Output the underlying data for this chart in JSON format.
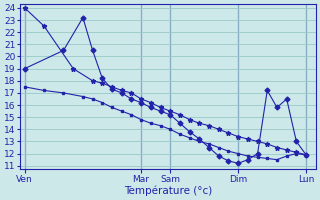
{
  "xlabel": "Température (°c)",
  "bg_color": "#cce8e8",
  "grid_color": "#99c8c8",
  "line_color": "#2222aa",
  "ylim_min": 10.7,
  "ylim_max": 24.3,
  "yticks": [
    11,
    12,
    13,
    14,
    15,
    16,
    17,
    18,
    19,
    20,
    21,
    22,
    23,
    24
  ],
  "day_labels": [
    "Ven",
    "Mar",
    "Sam",
    "Dim",
    "Lun"
  ],
  "day_positions": [
    0,
    12,
    15,
    22,
    29
  ],
  "xlim_min": -0.5,
  "xlim_max": 30.0,
  "s1_x": [
    0,
    2,
    5,
    7,
    8,
    9,
    10,
    11,
    12,
    13,
    14,
    15,
    16,
    17,
    18,
    19,
    20,
    21,
    22,
    23,
    24,
    25,
    26,
    27,
    28,
    29
  ],
  "s1_y": [
    24,
    22.5,
    19.0,
    18.0,
    17.8,
    17.5,
    17.2,
    17.0,
    16.5,
    16.2,
    15.8,
    15.5,
    15.2,
    14.8,
    14.5,
    14.3,
    14.0,
    13.7,
    13.4,
    13.2,
    13.0,
    12.8,
    12.5,
    12.3,
    12.1,
    11.9
  ],
  "s2_x": [
    0,
    4,
    6,
    7,
    8,
    9,
    10,
    11,
    12,
    13,
    14,
    15,
    16,
    17,
    18,
    19,
    20,
    21,
    22,
    23,
    24,
    25,
    26,
    27,
    28,
    29
  ],
  "s2_y": [
    19.0,
    20.5,
    23.2,
    20.5,
    18.2,
    17.3,
    17.0,
    16.5,
    16.2,
    15.8,
    15.5,
    15.2,
    14.5,
    13.8,
    13.2,
    12.5,
    11.8,
    11.4,
    11.2,
    11.5,
    12.0,
    17.2,
    15.8,
    16.5,
    13.0,
    11.9
  ],
  "s3_x": [
    0,
    2,
    4,
    6,
    7,
    8,
    9,
    10,
    11,
    12,
    13,
    14,
    15,
    16,
    17,
    18,
    19,
    20,
    21,
    22,
    23,
    24,
    25,
    26,
    27,
    28,
    29
  ],
  "s3_y": [
    17.5,
    17.2,
    17.0,
    16.7,
    16.5,
    16.2,
    15.8,
    15.5,
    15.2,
    14.8,
    14.5,
    14.3,
    14.0,
    13.6,
    13.3,
    13.0,
    12.8,
    12.5,
    12.2,
    12.0,
    11.8,
    11.7,
    11.6,
    11.5,
    11.8,
    12.0,
    11.9
  ]
}
